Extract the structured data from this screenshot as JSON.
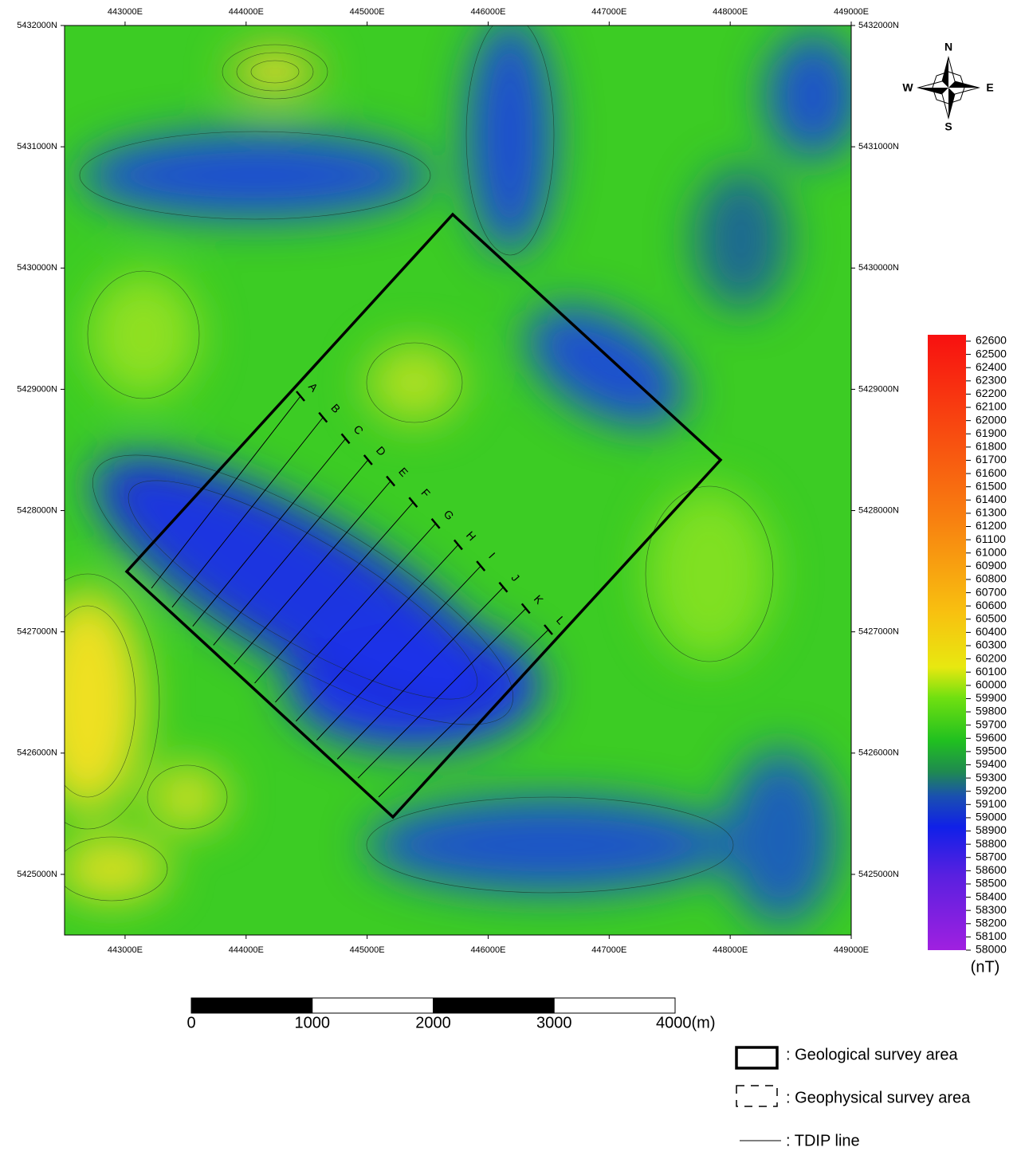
{
  "map": {
    "xlim": [
      442500,
      449000
    ],
    "ylim": [
      5424500,
      5432000
    ],
    "x_ticks": [
      {
        "value": 443000,
        "label": "443000E"
      },
      {
        "value": 444000,
        "label": "444000E"
      },
      {
        "value": 445000,
        "label": "445000E"
      },
      {
        "value": 446000,
        "label": "446000E"
      },
      {
        "value": 447000,
        "label": "447000E"
      },
      {
        "value": 448000,
        "label": "448000E"
      },
      {
        "value": 449000,
        "label": "449000E"
      }
    ],
    "y_ticks": [
      {
        "value": 5432000,
        "label": "5432000N"
      },
      {
        "value": 5431000,
        "label": "5431000N"
      },
      {
        "value": 5430000,
        "label": "5430000N"
      },
      {
        "value": 5429000,
        "label": "5429000N"
      },
      {
        "value": 5428000,
        "label": "5428000N"
      },
      {
        "value": 5427000,
        "label": "5427000N"
      },
      {
        "value": 5426000,
        "label": "5426000N"
      },
      {
        "value": 5425000,
        "label": "5425000N"
      }
    ],
    "compass": {
      "n": "N",
      "s": "S",
      "e": "E",
      "w": "W"
    },
    "survey_lines": [
      "A",
      "B",
      "C",
      "D",
      "E",
      "F",
      "G",
      "H",
      "I",
      "J",
      "K",
      "L"
    ]
  },
  "colorbar": {
    "range": [
      58000,
      62600
    ],
    "ticks": [
      58000,
      58100,
      58200,
      58300,
      58400,
      58500,
      58600,
      58700,
      58800,
      58900,
      59000,
      59100,
      59200,
      59300,
      59400,
      59500,
      59600,
      59700,
      59800,
      59900,
      60000,
      60100,
      60200,
      60300,
      60400,
      60500,
      60600,
      60700,
      60800,
      60900,
      61000,
      61100,
      61200,
      61300,
      61400,
      61500,
      61600,
      61700,
      61800,
      61900,
      62000,
      62100,
      62200,
      62300,
      62400,
      62500,
      62600
    ],
    "unit": "(nT)"
  },
  "scale_bar": {
    "ticks": [
      0,
      1000,
      2000,
      3000,
      {
        "value": 4000,
        "label": "4000(m)"
      }
    ]
  },
  "legend": [
    ": Geological survey area",
    ": Geophysical survey area",
    ": TDIP line"
  ]
}
